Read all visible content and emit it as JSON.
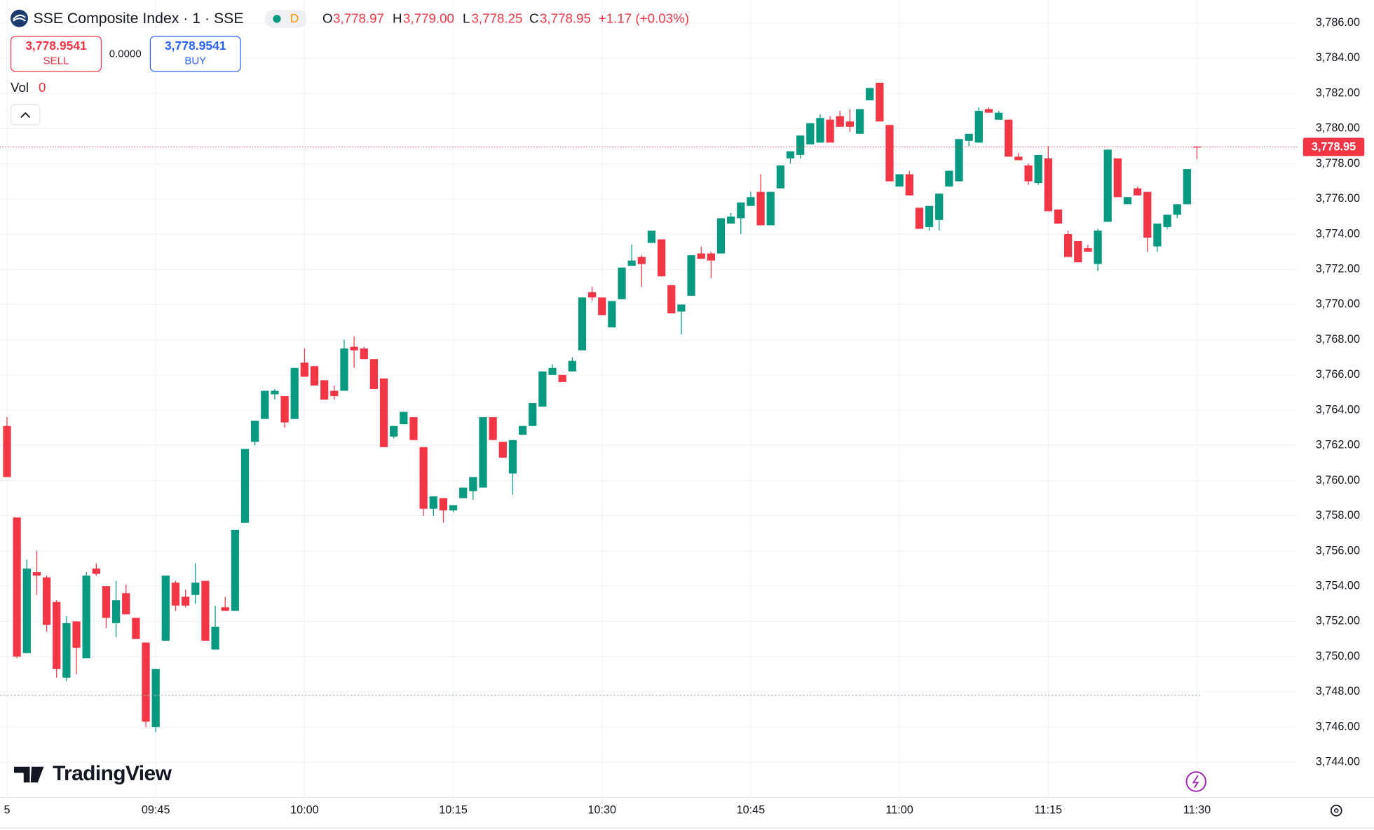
{
  "toolbar": {
    "symbol": "SSE Composite Index · 1 · SSE",
    "interval_badge": "D",
    "ohlc": [
      {
        "key": "O",
        "value": "3,778.97"
      },
      {
        "key": "H",
        "value": "3,779.00"
      },
      {
        "key": "L",
        "value": "3,778.25"
      },
      {
        "key": "C",
        "value": "3,778.95"
      }
    ],
    "change": "+1.17 (+0.03%)"
  },
  "trade": {
    "sell_price": "3,778.9541",
    "sell": "SELL",
    "spread": "0.0000",
    "buy_price": "3,778.9541",
    "buy": "BUY"
  },
  "volume": {
    "label": "Vol",
    "value": "0"
  },
  "branding": "TradingView",
  "chart_data": {
    "type": "candlestick",
    "up_color": "#089981",
    "down_color": "#f23645",
    "grid": true,
    "categories": [
      "5",
      null,
      null,
      null,
      null,
      null,
      null,
      null,
      null,
      null,
      null,
      null,
      null,
      null,
      null,
      "09:45",
      null,
      null,
      null,
      null,
      null,
      null,
      null,
      null,
      null,
      null,
      null,
      null,
      null,
      null,
      "10:00",
      null,
      null,
      null,
      null,
      null,
      null,
      null,
      null,
      null,
      null,
      null,
      null,
      null,
      null,
      "10:15",
      null,
      null,
      null,
      null,
      null,
      null,
      null,
      null,
      null,
      null,
      null,
      null,
      null,
      null,
      "10:30",
      null,
      null,
      null,
      null,
      null,
      null,
      null,
      null,
      null,
      null,
      null,
      null,
      null,
      null,
      "10:45",
      null,
      null,
      null,
      null,
      null,
      null,
      null,
      null,
      null,
      null,
      null,
      null,
      null,
      null,
      "11:00",
      null,
      null,
      null,
      null,
      null,
      null,
      null,
      null,
      null,
      null,
      null,
      null,
      null,
      null,
      "11:15",
      null,
      null,
      null,
      null,
      null,
      null,
      null,
      null,
      null,
      null,
      null,
      null,
      null,
      null,
      "11:30"
    ],
    "open": [
      3763.1,
      3757.9,
      3750.2,
      3754.8,
      3754.5,
      3753.1,
      3748.8,
      3752.0,
      3749.9,
      3755.0,
      3754.0,
      3751.9,
      3753.6,
      3752.2,
      3750.8,
      3746.0,
      3750.9,
      3754.2,
      3753.4,
      3753.5,
      3754.3,
      3750.4,
      3752.8,
      3752.6,
      3757.6,
      3762.2,
      3763.5,
      3764.9,
      3764.8,
      3763.5,
      3766.7,
      3766.5,
      3765.7,
      3765.1,
      3765.1,
      3767.6,
      3767.5,
      3766.9,
      3765.8,
      3762.5,
      3763.2,
      3763.6,
      3761.9,
      3758.4,
      3759.0,
      3758.3,
      3759.0,
      3759.4,
      3759.6,
      3763.6,
      3762.2,
      3760.4,
      3762.6,
      3763.1,
      3764.2,
      3766.0,
      3766.0,
      3766.2,
      3767.4,
      3770.7,
      3770.4,
      3768.7,
      3770.3,
      3772.2,
      3772.7,
      3773.5,
      3773.7,
      3771.1,
      3769.6,
      3770.5,
      3772.9,
      3772.9,
      3772.9,
      3774.6,
      3774.9,
      3775.6,
      3776.4,
      3774.5,
      3776.6,
      3778.3,
      3778.5,
      3779.1,
      3779.2,
      3780.5,
      3780.7,
      3780.4,
      3779.7,
      3781.6,
      3782.6,
      3780.2,
      3776.7,
      3777.4,
      3775.5,
      3774.4,
      3774.8,
      3776.7,
      3777.0,
      3779.3,
      3779.2,
      3781.1,
      3780.5,
      3780.5,
      3778.4,
      3777.9,
      3776.9,
      3778.3,
      3775.4,
      3774.0,
      3773.6,
      3773.2,
      3772.3,
      3774.7,
      3778.3,
      3775.7,
      3776.6,
      3776.4,
      3773.3,
      3774.4,
      3775.1,
      3775.7,
      3778.97
    ],
    "high": [
      3763.6,
      3757.9,
      3755.5,
      3756.0,
      3754.6,
      3753.2,
      3752.3,
      3752.0,
      3754.8,
      3755.3,
      3754.0,
      3754.3,
      3754.1,
      3752.2,
      3750.8,
      3749.3,
      3754.6,
      3754.3,
      3753.8,
      3755.3,
      3754.3,
      3752.9,
      3753.4,
      3757.2,
      3761.8,
      3763.4,
      3765.1,
      3765.2,
      3764.8,
      3766.4,
      3767.5,
      3766.5,
      3765.7,
      3765.4,
      3768.0,
      3768.2,
      3767.6,
      3766.9,
      3765.8,
      3763.1,
      3763.9,
      3763.6,
      3761.9,
      3759.1,
      3759.0,
      3758.6,
      3759.6,
      3760.2,
      3763.6,
      3763.6,
      3762.2,
      3762.3,
      3763.1,
      3764.4,
      3766.2,
      3766.6,
      3766.0,
      3767.0,
      3770.4,
      3771.0,
      3770.4,
      3770.2,
      3772.1,
      3773.4,
      3772.8,
      3774.2,
      3773.7,
      3771.1,
      3770.0,
      3772.8,
      3773.3,
      3773.0,
      3774.9,
      3775.2,
      3775.8,
      3776.4,
      3777.4,
      3776.4,
      3777.9,
      3778.7,
      3779.6,
      3780.3,
      3780.8,
      3780.7,
      3781.0,
      3781.1,
      3781.1,
      3782.3,
      3782.6,
      3780.2,
      3777.4,
      3777.6,
      3775.5,
      3775.6,
      3776.3,
      3777.6,
      3779.4,
      3779.7,
      3781.2,
      3781.2,
      3781.0,
      3780.5,
      3778.6,
      3778.0,
      3778.5,
      3779.0,
      3775.4,
      3774.2,
      3773.6,
      3773.4,
      3774.3,
      3778.8,
      3778.3,
      3776.1,
      3776.7,
      3776.4,
      3774.6,
      3775.1,
      3775.7,
      3777.7,
      3779.0
    ],
    "low": [
      3760.2,
      3749.9,
      3750.2,
      3753.5,
      3751.4,
      3748.8,
      3748.6,
      3749.0,
      3749.9,
      3754.6,
      3751.6,
      3751.1,
      3752.4,
      3751.0,
      3746.0,
      3745.7,
      3750.9,
      3752.6,
      3752.8,
      3753.0,
      3750.9,
      3750.4,
      3752.6,
      3752.6,
      3757.6,
      3762.0,
      3763.5,
      3764.6,
      3763.0,
      3763.5,
      3765.9,
      3765.4,
      3764.6,
      3764.6,
      3765.1,
      3766.4,
      3766.9,
      3765.2,
      3761.9,
      3762.4,
      3763.2,
      3762.3,
      3758.0,
      3758.0,
      3757.6,
      3758.2,
      3759.0,
      3758.9,
      3759.6,
      3762.3,
      3761.3,
      3759.2,
      3762.6,
      3763.1,
      3764.2,
      3766.0,
      3765.6,
      3766.2,
      3767.4,
      3770.2,
      3769.4,
      3768.7,
      3770.3,
      3772.2,
      3771.0,
      3773.5,
      3771.6,
      3769.5,
      3768.3,
      3770.5,
      3772.6,
      3771.5,
      3772.9,
      3774.6,
      3774.0,
      3775.6,
      3774.5,
      3774.5,
      3776.6,
      3778.0,
      3778.3,
      3779.1,
      3779.2,
      3779.2,
      3780.1,
      3779.8,
      3779.7,
      3781.6,
      3780.4,
      3777.0,
      3776.7,
      3776.2,
      3774.3,
      3774.2,
      3774.2,
      3776.7,
      3777.0,
      3779.0,
      3779.2,
      3780.9,
      3780.5,
      3778.4,
      3778.2,
      3776.8,
      3776.8,
      3775.3,
      3774.6,
      3772.7,
      3772.4,
      3773.0,
      3771.9,
      3774.7,
      3776.1,
      3775.7,
      3776.2,
      3773.0,
      3773.0,
      3774.3,
      3774.9,
      3775.7,
      3778.25
    ],
    "close": [
      3760.2,
      3750.0,
      3755.0,
      3754.6,
      3751.8,
      3749.3,
      3751.9,
      3750.5,
      3754.6,
      3754.7,
      3752.2,
      3753.2,
      3752.4,
      3751.0,
      3746.3,
      3749.3,
      3754.6,
      3752.9,
      3752.9,
      3754.2,
      3750.9,
      3751.7,
      3752.6,
      3757.2,
      3761.8,
      3763.4,
      3765.1,
      3765.1,
      3763.3,
      3766.4,
      3765.9,
      3765.4,
      3764.6,
      3764.8,
      3767.5,
      3767.4,
      3766.9,
      3765.2,
      3761.9,
      3763.1,
      3763.9,
      3762.3,
      3758.4,
      3759.1,
      3758.3,
      3758.6,
      3759.6,
      3760.2,
      3763.6,
      3762.3,
      3761.3,
      3762.3,
      3763.1,
      3764.4,
      3766.2,
      3766.4,
      3765.6,
      3766.8,
      3770.4,
      3770.4,
      3769.4,
      3770.2,
      3772.1,
      3772.5,
      3772.3,
      3774.2,
      3771.6,
      3769.5,
      3770.0,
      3772.8,
      3772.6,
      3772.5,
      3774.9,
      3775.0,
      3775.8,
      3776.1,
      3774.5,
      3776.4,
      3777.9,
      3778.7,
      3779.6,
      3780.3,
      3780.6,
      3779.2,
      3780.1,
      3780.1,
      3781.1,
      3782.3,
      3780.4,
      3777.0,
      3777.4,
      3776.2,
      3774.3,
      3775.6,
      3776.3,
      3777.6,
      3779.4,
      3779.7,
      3781.0,
      3780.9,
      3780.9,
      3778.4,
      3778.2,
      3777.0,
      3778.5,
      3775.3,
      3774.6,
      3772.7,
      3772.4,
      3773.0,
      3774.2,
      3778.8,
      3776.1,
      3776.1,
      3776.2,
      3773.8,
      3774.6,
      3775.1,
      3775.7,
      3777.7,
      3778.95
    ],
    "ylim": [
      3742,
      3787.3
    ],
    "yticks": [
      {
        "value": 3744,
        "label": "3,744.00"
      },
      {
        "value": 3746,
        "label": "3,746.00"
      },
      {
        "value": 3748,
        "label": "3,748.00"
      },
      {
        "value": 3750,
        "label": "3,750.00"
      },
      {
        "value": 3752,
        "label": "3,752.00"
      },
      {
        "value": 3754,
        "label": "3,754.00"
      },
      {
        "value": 3756,
        "label": "3,756.00"
      },
      {
        "value": 3758,
        "label": "3,758.00"
      },
      {
        "value": 3760,
        "label": "3,760.00"
      },
      {
        "value": 3762,
        "label": "3,762.00"
      },
      {
        "value": 3764,
        "label": "3,764.00"
      },
      {
        "value": 3766,
        "label": "3,766.00"
      },
      {
        "value": 3768,
        "label": "3,768.00"
      },
      {
        "value": 3770,
        "label": "3,770.00"
      },
      {
        "value": 3772,
        "label": "3,772.00"
      },
      {
        "value": 3774,
        "label": "3,774.00"
      },
      {
        "value": 3776,
        "label": "3,776.00"
      },
      {
        "value": 3778,
        "label": "3,778.00"
      },
      {
        "value": 3780,
        "label": "3,780.00"
      },
      {
        "value": 3782,
        "label": "3,782.00"
      },
      {
        "value": 3784,
        "label": "3,784.00"
      },
      {
        "value": 3786,
        "label": "3,786.00"
      }
    ],
    "last_price": {
      "value": 3778.95,
      "label": "3,778.95"
    },
    "reference_line": 3747.8
  }
}
